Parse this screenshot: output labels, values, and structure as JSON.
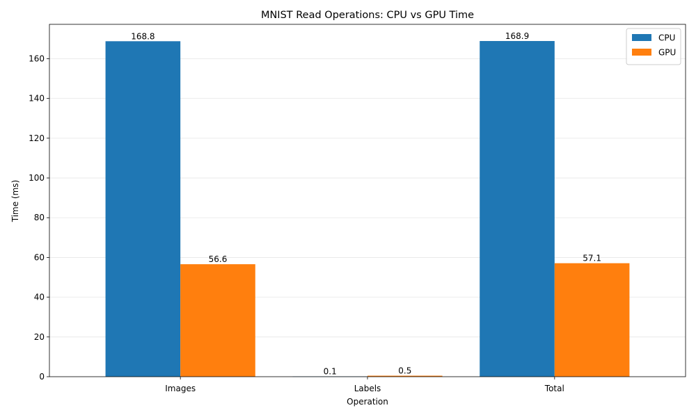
{
  "chart_data": {
    "type": "bar",
    "title": "MNIST Read Operations: CPU vs GPU Time",
    "xlabel": "Operation",
    "ylabel": "Time (ms)",
    "categories": [
      "Images",
      "Labels",
      "Total"
    ],
    "series": [
      {
        "name": "CPU",
        "values": [
          168.8,
          0.1,
          168.9
        ],
        "labels": [
          "168.8",
          "0.1",
          "168.9"
        ],
        "color": "#1f77b4"
      },
      {
        "name": "GPU",
        "values": [
          56.6,
          0.5,
          57.1
        ],
        "labels": [
          "56.6",
          "0.5",
          "57.1"
        ],
        "color": "#ff7f0e"
      }
    ],
    "ylim": [
      0,
      177.3
    ],
    "yticks": [
      0,
      20,
      40,
      60,
      80,
      100,
      120,
      140,
      160
    ],
    "grid": "y-only",
    "legend_position": "top-right"
  }
}
